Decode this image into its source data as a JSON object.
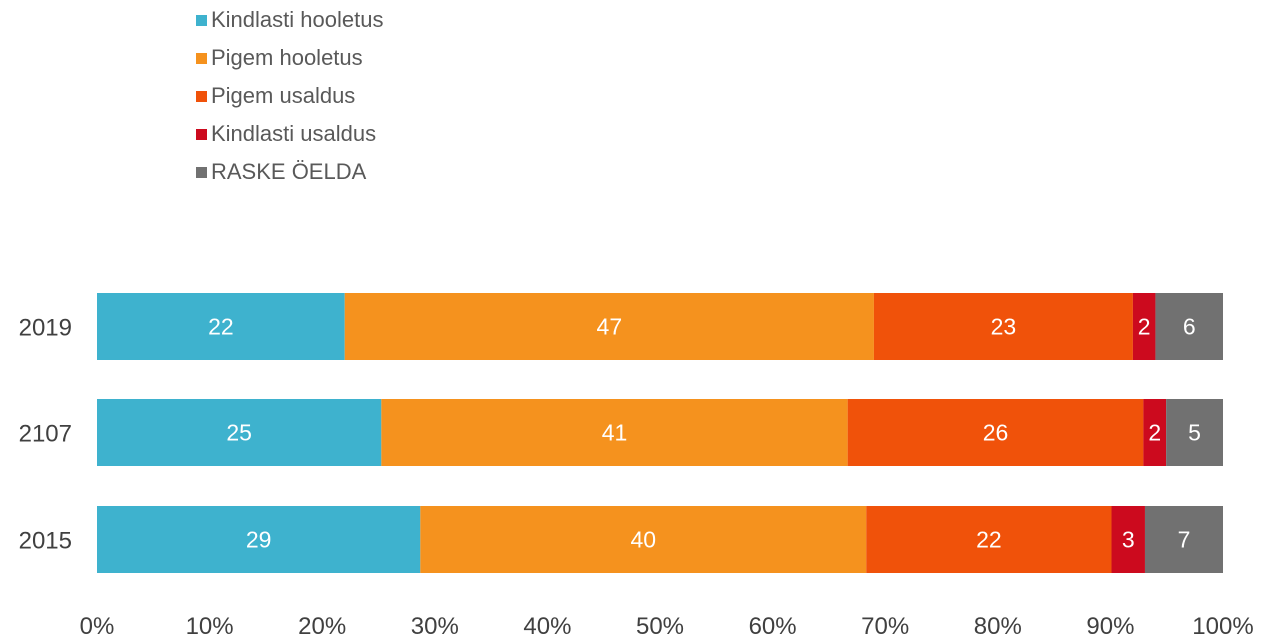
{
  "chart_data": {
    "type": "bar",
    "orientation": "horizontal",
    "stacked": true,
    "percent_stacked": true,
    "categories": [
      "2019",
      "2107",
      "2015"
    ],
    "series": [
      {
        "name": "Kindlasti hooletus",
        "color": "#3EB2CE",
        "values": [
          22,
          25,
          29
        ]
      },
      {
        "name": "Pigem hooletus",
        "color": "#F5921E",
        "values": [
          47,
          41,
          40
        ]
      },
      {
        "name": "Pigem usaldus",
        "color": "#F0520A",
        "values": [
          23,
          26,
          22
        ]
      },
      {
        "name": "Kindlasti usaldus",
        "color": "#CC0A1E",
        "values": [
          2,
          2,
          3
        ]
      },
      {
        "name": "RASKE ÖELDA",
        "color": "#717171",
        "values": [
          6,
          5,
          7
        ]
      }
    ],
    "xaxis": {
      "ticks": [
        "0%",
        "10%",
        "20%",
        "30%",
        "40%",
        "50%",
        "60%",
        "70%",
        "80%",
        "90%",
        "100%"
      ],
      "range": [
        0,
        100
      ]
    },
    "legend_position": "top-left",
    "grid": false
  }
}
